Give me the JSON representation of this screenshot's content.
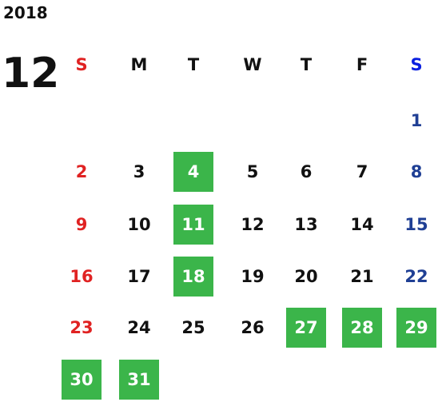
{
  "calendar": {
    "year": "2018",
    "month": "12",
    "weekdays": [
      "S",
      "M",
      "T",
      "W",
      "T",
      "F",
      "S"
    ],
    "colors": {
      "text": "#111111",
      "sunday": "#e02222",
      "saturday_header": "#0a1fe0",
      "saturday": "#1f3f94",
      "highlight": "#3bb54a",
      "highlight_text": "#ffffff"
    },
    "weeks": [
      [
        null,
        null,
        null,
        null,
        null,
        null,
        {
          "day": 1,
          "highlight": false
        }
      ],
      [
        {
          "day": 2,
          "highlight": false
        },
        {
          "day": 3,
          "highlight": false
        },
        {
          "day": 4,
          "highlight": true
        },
        {
          "day": 5,
          "highlight": false
        },
        {
          "day": 6,
          "highlight": false
        },
        {
          "day": 7,
          "highlight": false
        },
        {
          "day": 8,
          "highlight": false
        }
      ],
      [
        {
          "day": 9,
          "highlight": false
        },
        {
          "day": 10,
          "highlight": false
        },
        {
          "day": 11,
          "highlight": true
        },
        {
          "day": 12,
          "highlight": false
        },
        {
          "day": 13,
          "highlight": false
        },
        {
          "day": 14,
          "highlight": false
        },
        {
          "day": 15,
          "highlight": false
        }
      ],
      [
        {
          "day": 16,
          "highlight": false
        },
        {
          "day": 17,
          "highlight": false
        },
        {
          "day": 18,
          "highlight": true
        },
        {
          "day": 19,
          "highlight": false
        },
        {
          "day": 20,
          "highlight": false
        },
        {
          "day": 21,
          "highlight": false
        },
        {
          "day": 22,
          "highlight": false
        }
      ],
      [
        {
          "day": 23,
          "highlight": false
        },
        {
          "day": 24,
          "highlight": false
        },
        {
          "day": 25,
          "highlight": false
        },
        {
          "day": 26,
          "highlight": false
        },
        {
          "day": 27,
          "highlight": true
        },
        {
          "day": 28,
          "highlight": true
        },
        {
          "day": 29,
          "highlight": true
        }
      ],
      [
        {
          "day": 30,
          "highlight": true
        },
        {
          "day": 31,
          "highlight": true
        },
        null,
        null,
        null,
        null,
        null
      ]
    ]
  }
}
